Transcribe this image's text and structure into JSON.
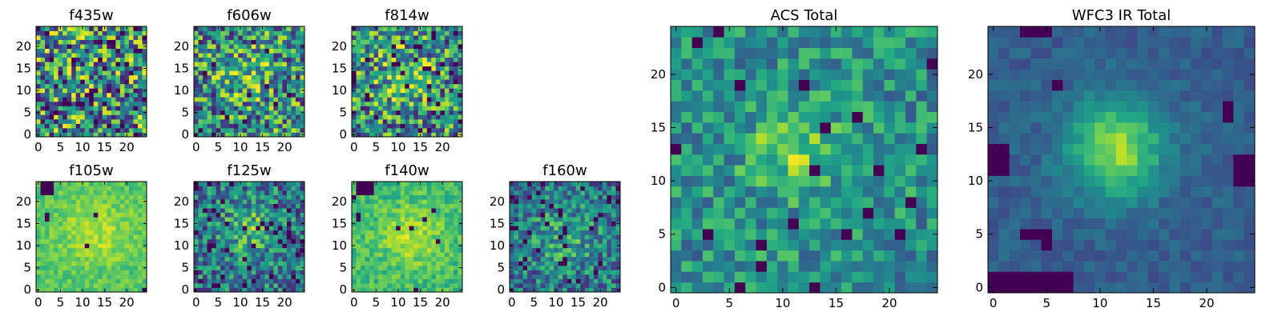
{
  "chart_data": [
    {
      "type": "heatmap",
      "title": "f435w",
      "grid": [
        25,
        25
      ],
      "seed": 11,
      "center": [
        12,
        12
      ],
      "sigma": 5,
      "peak": 0.05,
      "noise": 1.0,
      "bad": 0.04,
      "xticks": [
        "0",
        "5",
        "10",
        "15",
        "20"
      ],
      "yticks": [
        "0",
        "5",
        "10",
        "15",
        "20"
      ],
      "xlim": [
        -0.5,
        24.5
      ],
      "ylim": [
        -0.5,
        24.5
      ],
      "colormap": "viridis"
    },
    {
      "type": "heatmap",
      "title": "f606w",
      "grid": [
        25,
        25
      ],
      "seed": 23,
      "center": [
        12,
        14
      ],
      "sigma": 4,
      "peak": 0.2,
      "noise": 0.85,
      "bad": 0.02,
      "xticks": [
        "0",
        "5",
        "10",
        "15",
        "20"
      ],
      "yticks": [
        "0",
        "5",
        "10",
        "15",
        "20"
      ],
      "xlim": [
        -0.5,
        24.5
      ],
      "ylim": [
        -0.5,
        24.5
      ],
      "colormap": "viridis"
    },
    {
      "type": "heatmap",
      "title": "f814w",
      "grid": [
        25,
        25
      ],
      "seed": 37,
      "center": [
        12,
        13
      ],
      "sigma": 4,
      "peak": 0.3,
      "noise": 0.85,
      "bad": 0.05,
      "xticks": [
        "0",
        "5",
        "10",
        "15",
        "20"
      ],
      "yticks": [
        "0",
        "5",
        "10",
        "15",
        "20"
      ],
      "xlim": [
        -0.5,
        24.5
      ],
      "ylim": [
        -0.5,
        24.5
      ],
      "colormap": "viridis"
    },
    {
      "type": "heatmap",
      "title": "f105w",
      "grid": [
        25,
        25
      ],
      "seed": 41,
      "center": [
        13,
        13
      ],
      "sigma": 6,
      "peak": 0.15,
      "noise": 0.2,
      "base": 0.72,
      "bad": 0.006,
      "badblocks": [
        [
          1,
          22,
          3,
          24
        ],
        [
          2,
          16,
          2,
          17
        ]
      ],
      "xticks": [
        "0",
        "5",
        "10",
        "15",
        "20"
      ],
      "yticks": [
        "0",
        "5",
        "10",
        "15",
        "20"
      ],
      "xlim": [
        -0.5,
        24.5
      ],
      "ylim": [
        -0.5,
        24.5
      ],
      "colormap": "viridis"
    },
    {
      "type": "heatmap",
      "title": "f125w",
      "grid": [
        25,
        25
      ],
      "seed": 53,
      "center": [
        12,
        14
      ],
      "sigma": 4,
      "peak": 0.3,
      "noise": 0.6,
      "base": 0.4,
      "bad": 0.05,
      "xticks": [
        "0",
        "5",
        "10",
        "15",
        "20"
      ],
      "yticks": [
        "0",
        "5",
        "10",
        "15",
        "20"
      ],
      "xlim": [
        -0.5,
        24.5
      ],
      "ylim": [
        -0.5,
        24.5
      ],
      "colormap": "viridis"
    },
    {
      "type": "heatmap",
      "title": "f140w",
      "grid": [
        25,
        25
      ],
      "seed": 67,
      "center": [
        13,
        12
      ],
      "sigma": 5,
      "peak": 0.2,
      "noise": 0.25,
      "base": 0.68,
      "bad": 0.005,
      "badblocks": [
        [
          1,
          22,
          4,
          24
        ],
        [
          1,
          16,
          1,
          17
        ]
      ],
      "xticks": [
        "0",
        "5",
        "10",
        "15",
        "20"
      ],
      "yticks": [
        "0",
        "5",
        "10",
        "15",
        "20"
      ],
      "xlim": [
        -0.5,
        24.5
      ],
      "ylim": [
        -0.5,
        24.5
      ],
      "colormap": "viridis"
    },
    {
      "type": "heatmap",
      "title": "f160w",
      "grid": [
        25,
        25
      ],
      "seed": 79,
      "center": [
        12,
        12
      ],
      "sigma": 5,
      "peak": 0.2,
      "noise": 0.55,
      "base": 0.4,
      "bad": 0.06,
      "xticks": [
        "0",
        "5",
        "10",
        "15",
        "20"
      ],
      "yticks": [
        "0",
        "5",
        "10",
        "15",
        "20"
      ],
      "xlim": [
        -0.5,
        24.5
      ],
      "ylim": [
        -0.5,
        24.5
      ],
      "colormap": "viridis"
    },
    {
      "type": "heatmap",
      "title": "ACS Total",
      "grid": [
        25,
        25
      ],
      "seed": 97,
      "center": [
        11,
        13
      ],
      "sigma": 3,
      "peak": 0.3,
      "noise": 0.45,
      "base": 0.5,
      "bad": 0.035,
      "xticks": [
        "0",
        "5",
        "10",
        "15",
        "20"
      ],
      "yticks": [
        "0",
        "5",
        "10",
        "15",
        "20"
      ],
      "xlim": [
        -0.5,
        24.5
      ],
      "ylim": [
        -0.5,
        24.5
      ],
      "colormap": "viridis"
    },
    {
      "type": "heatmap",
      "title": "WFC3 IR Total",
      "grid": [
        25,
        25
      ],
      "seed": 113,
      "center": [
        11.5,
        13
      ],
      "sigma": 3.2,
      "peak": 0.55,
      "noise": 0.15,
      "base": 0.3,
      "bad": 0.0,
      "badblocks": [
        [
          3,
          24,
          5,
          24
        ],
        [
          0,
          0,
          7,
          1
        ],
        [
          0,
          11,
          1,
          13
        ],
        [
          23,
          10,
          24,
          12
        ],
        [
          22,
          16,
          22,
          17
        ],
        [
          5,
          4,
          5,
          5
        ],
        [
          3,
          5,
          4,
          5
        ],
        [
          6,
          19,
          6,
          19
        ]
      ],
      "xticks": [
        "0",
        "5",
        "10",
        "15",
        "20"
      ],
      "yticks": [
        "0",
        "5",
        "10",
        "15",
        "20"
      ],
      "xlim": [
        -0.5,
        24.5
      ],
      "ylim": [
        -0.5,
        24.5
      ],
      "colormap": "viridis"
    }
  ]
}
